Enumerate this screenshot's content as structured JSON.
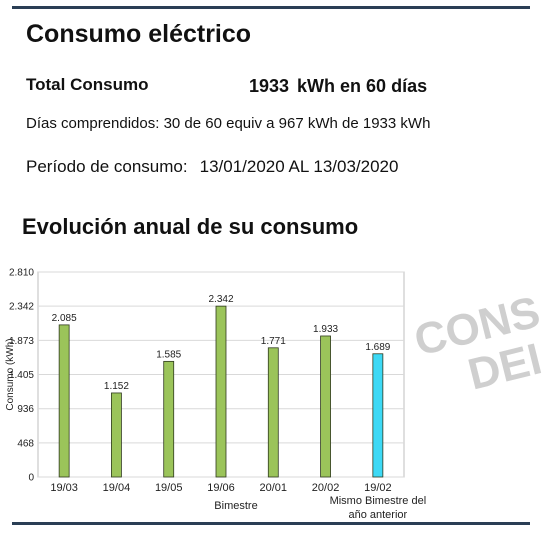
{
  "header": {
    "title": "Consumo eléctrico",
    "total_label": "Total Consumo",
    "total_value": "1933",
    "total_unit_text": "kWh en 60 días",
    "days_text": "Días comprendidos: 30 de 60 equiv a 967 kWh de 1933 kWh",
    "period_label": "Período de consumo:",
    "period_dates": "13/01/2020 AL 13/03/2020"
  },
  "section_title": "Evolución anual de su consumo",
  "watermark": {
    "line1": "CONS",
    "line2": "DEI"
  },
  "colors": {
    "rule": "#2a3e55",
    "bar_green": "#9bc45a",
    "bar_cyan": "#3dd9f5",
    "bar_stroke": "#2f3a1f",
    "grid": "#d9d9d9"
  },
  "chart_data": {
    "type": "bar",
    "categories": [
      "19/03",
      "19/04",
      "19/05",
      "19/06",
      "20/01",
      "20/02",
      "19/02"
    ],
    "category_note": "Mismo Bimestre del año anterior",
    "values": [
      2085,
      1152,
      1585,
      2342,
      1771,
      1933,
      1689
    ],
    "value_labels": [
      "2.085",
      "1.152",
      "1.585",
      "2.342",
      "1.771",
      "1.933",
      "1.689"
    ],
    "bar_colors": [
      "#9bc45a",
      "#9bc45a",
      "#9bc45a",
      "#9bc45a",
      "#9bc45a",
      "#9bc45a",
      "#3dd9f5"
    ],
    "yticks": [
      0,
      468,
      936,
      1405,
      1873,
      2342,
      2810
    ],
    "ytick_labels": [
      "0",
      "468",
      "936",
      "1.405",
      "1.873",
      "2.342",
      "2.810"
    ],
    "ylim": [
      0,
      2810
    ],
    "xlabel": "Bimestre",
    "ylabel": "Consumo (kWh)",
    "grid": true
  }
}
